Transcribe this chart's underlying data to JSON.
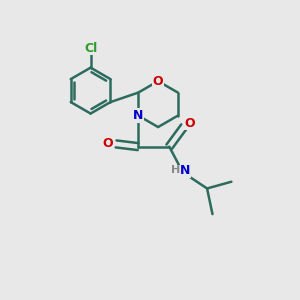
{
  "bg_color": "#e8e8e8",
  "bond_color": "#2d6b5e",
  "bond_width": 1.8,
  "atom_colors": {
    "C": "#2d6b5e",
    "N": "#0000cc",
    "O": "#cc0000",
    "Cl": "#2d9b2d",
    "H": "#888888"
  },
  "font_size": 9,
  "fig_size": [
    3.0,
    3.0
  ],
  "dpi": 100
}
